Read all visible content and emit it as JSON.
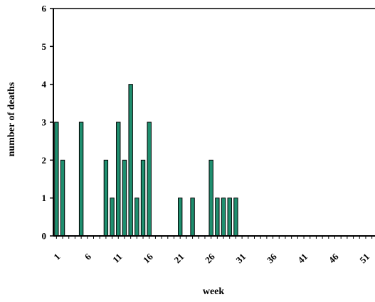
{
  "chart_data": {
    "type": "bar",
    "title": "",
    "xlabel": "week",
    "ylabel": "number of deaths",
    "x": [
      1,
      2,
      3,
      4,
      5,
      6,
      7,
      8,
      9,
      10,
      11,
      12,
      13,
      14,
      15,
      16,
      17,
      18,
      19,
      20,
      21,
      22,
      23,
      24,
      25,
      26,
      27,
      28,
      29,
      30,
      31,
      32,
      33,
      34,
      35,
      36,
      37,
      38,
      39,
      40,
      41,
      42,
      43,
      44,
      45,
      46,
      47,
      48,
      49,
      50,
      51,
      52
    ],
    "values": [
      3,
      2,
      0,
      0,
      3,
      0,
      0,
      0,
      2,
      1,
      3,
      2,
      4,
      1,
      2,
      3,
      0,
      0,
      0,
      0,
      1,
      0,
      1,
      0,
      0,
      2,
      1,
      1,
      1,
      1,
      0,
      0,
      0,
      0,
      0,
      0,
      0,
      0,
      0,
      0,
      0,
      0,
      0,
      0,
      0,
      0,
      0,
      0,
      0,
      0,
      0,
      0
    ],
    "x_tick_labels": [
      "1",
      "6",
      "11",
      "16",
      "21",
      "26",
      "31",
      "36",
      "41",
      "46",
      "51"
    ],
    "y_tick_labels": [
      "0",
      "1",
      "2",
      "3",
      "4",
      "5",
      "6"
    ],
    "ylim": [
      0,
      6
    ],
    "grid": false,
    "legend": "none",
    "bar_color": "#1f8f6f",
    "bar_edge_color": "#000000"
  }
}
